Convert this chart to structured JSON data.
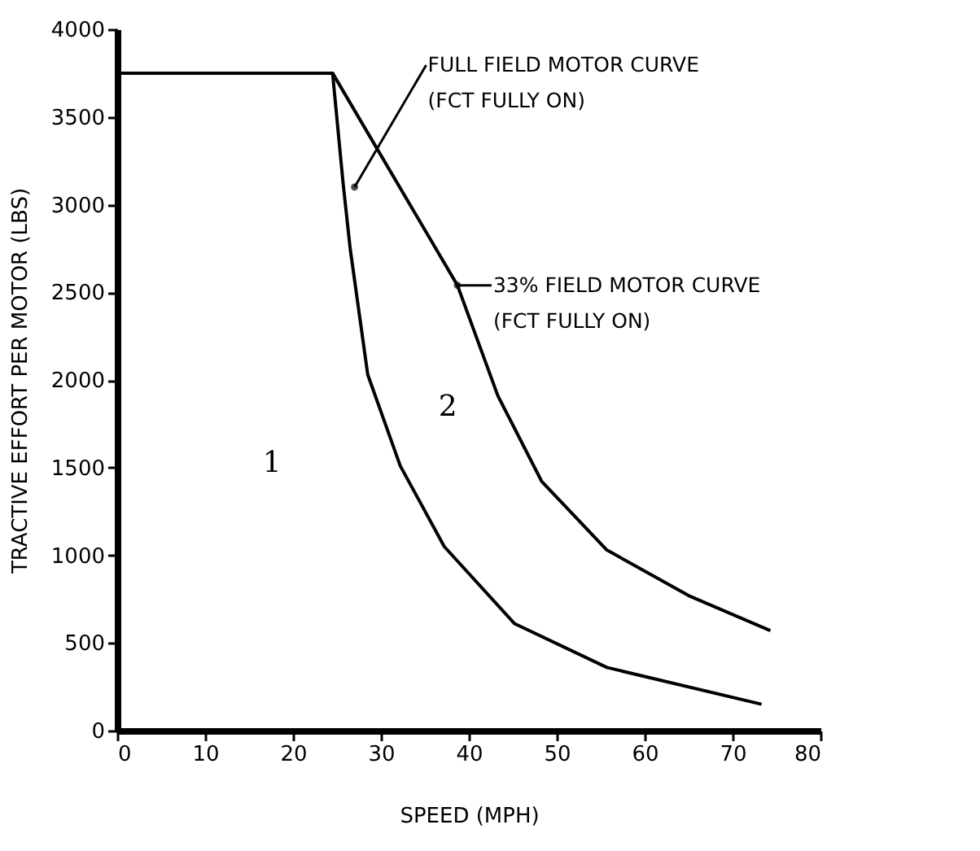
{
  "chart_data": {
    "type": "line",
    "xlabel": "SPEED (MPH)",
    "ylabel": "TRACTIVE EFFORT PER MOTOR (LBS)",
    "x": [
      0,
      24.5,
      25.7,
      26.5,
      28.5,
      32.2,
      37.2,
      45.2,
      55.7,
      73.3
    ],
    "series": [
      {
        "color": "#000000",
        "values": [
          3750,
          3750,
          3120,
          2750,
          2030,
          1510,
          1050,
          610,
          360,
          150
        ]
      },
      {
        "color": "#000000",
        "x": [
          0,
          24.5,
          38.7,
          43.3,
          48.3,
          55.7,
          65,
          74.3
        ],
        "values": [
          3750,
          3750,
          2540,
          1910,
          1420,
          1030,
          770,
          570
        ]
      }
    ],
    "annotations": [
      {
        "text": "FULL FIELD MOTOR CURVE\n(FCT FULLY ON)",
        "x": 27,
        "y": 3100
      },
      {
        "text": "33% FIELD MOTOR CURVE\n(FCT FULLY ON)",
        "x": 38.7,
        "y": 2540
      },
      "1",
      "2"
    ],
    "xlim": [
      0,
      80
    ],
    "ylim": [
      0,
      4000
    ],
    "xticks": [
      0,
      10,
      20,
      30,
      40,
      50,
      60,
      70,
      80
    ],
    "yticks": [
      0,
      500,
      1000,
      1500,
      2000,
      2500,
      3000,
      3500,
      4000
    ],
    "grid": false,
    "legend": false,
    "marker": "none",
    "line_style": "solid"
  }
}
